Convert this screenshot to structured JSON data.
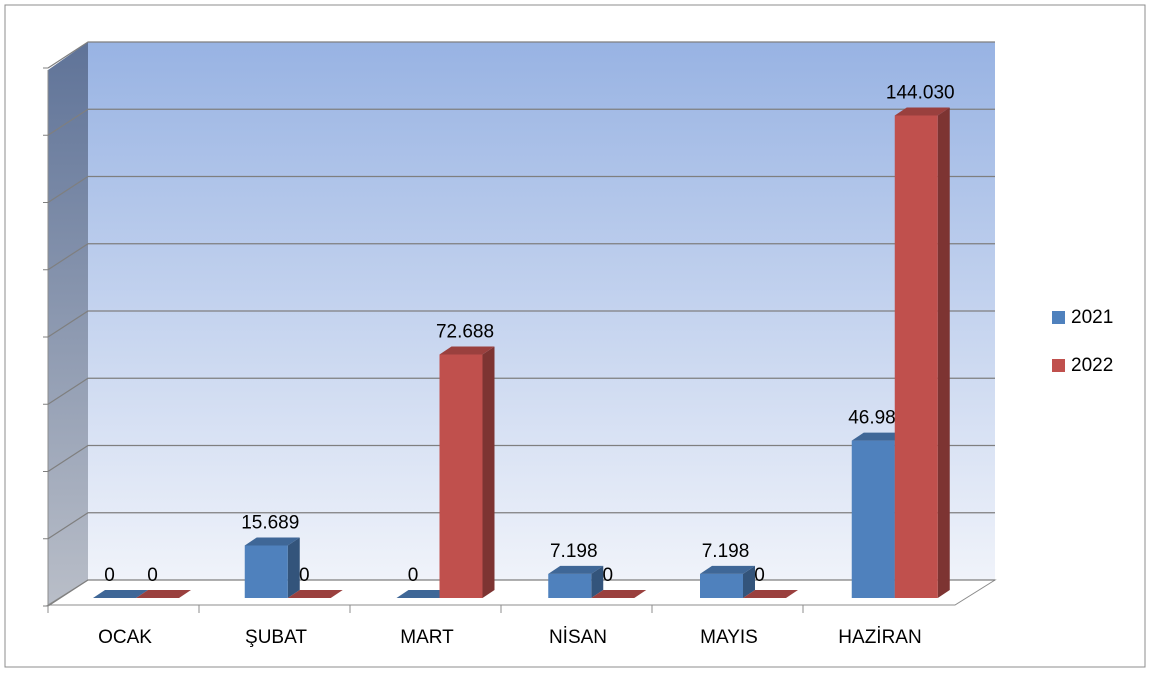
{
  "chart_data": {
    "type": "bar3d",
    "categories": [
      "OCAK",
      "ŞUBAT",
      "MART",
      "NİSAN",
      "MAYIS",
      "HAZİRAN"
    ],
    "series": [
      {
        "name": "2021",
        "color": "#4f81bd",
        "values": [
          0,
          15689,
          0,
          7198,
          7198,
          46982
        ],
        "value_labels": [
          "0",
          "15.689",
          "0",
          "7.198",
          "7.198",
          "46.982"
        ]
      },
      {
        "name": "2022",
        "color": "#c0504d",
        "values": [
          0,
          0,
          72688,
          0,
          0,
          144030
        ],
        "value_labels": [
          "0",
          "0",
          "72.688",
          "0",
          "0",
          "144.030"
        ]
      }
    ],
    "ylim": [
      0,
      160000
    ],
    "yticks": [
      0,
      20000,
      40000,
      60000,
      80000,
      100000,
      120000,
      140000,
      160000
    ],
    "grid": true,
    "legend": "right"
  }
}
